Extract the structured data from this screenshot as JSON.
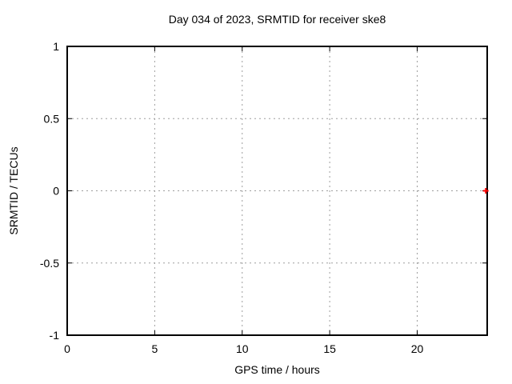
{
  "chart_data": {
    "type": "scatter",
    "title": "Day 034 of 2023, SRMTID for receiver ske8",
    "xlabel": "GPS time / hours",
    "ylabel": "SRMTID / TECUs",
    "xlim": [
      0,
      24
    ],
    "ylim": [
      -1,
      1
    ],
    "xticks": [
      0,
      5,
      10,
      15,
      20
    ],
    "yticks": [
      -1,
      -0.5,
      0,
      0.5,
      1
    ],
    "grid": true,
    "legend": false,
    "tick_style": "inward-mirrored",
    "series": [
      {
        "marker": "plus",
        "color": "#ff0000",
        "points": [
          {
            "x": 23.92,
            "y": 0
          }
        ]
      }
    ],
    "colors": {
      "background": "#ffffff",
      "border": "#000000",
      "grid": "#9e9e9e",
      "text": "#000000"
    }
  }
}
